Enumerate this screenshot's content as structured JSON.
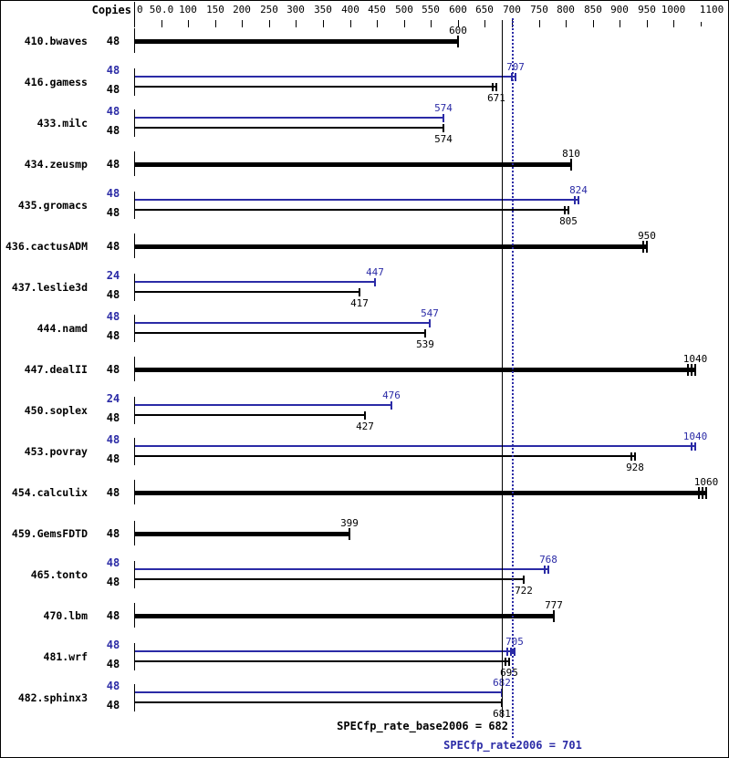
{
  "header": {
    "copies_label": "Copies"
  },
  "chart_data": {
    "type": "bar",
    "orientation": "horizontal",
    "title": "",
    "unit_header": "Copies",
    "x_axis": {
      "min": 0,
      "max": 1100,
      "tick_step": 50,
      "ticks": [
        {
          "v": 0,
          "label": "0"
        },
        {
          "v": 50,
          "label": "50.0"
        },
        {
          "v": 100,
          "label": "100"
        },
        {
          "v": 150,
          "label": "150"
        },
        {
          "v": 200,
          "label": "200"
        },
        {
          "v": 250,
          "label": "250"
        },
        {
          "v": 300,
          "label": "300"
        },
        {
          "v": 350,
          "label": "350"
        },
        {
          "v": 400,
          "label": "400"
        },
        {
          "v": 450,
          "label": "450"
        },
        {
          "v": 500,
          "label": "500"
        },
        {
          "v": 550,
          "label": "550"
        },
        {
          "v": 600,
          "label": "600"
        },
        {
          "v": 650,
          "label": "650"
        },
        {
          "v": 700,
          "label": "700"
        },
        {
          "v": 750,
          "label": "750"
        },
        {
          "v": 800,
          "label": "800"
        },
        {
          "v": 850,
          "label": "850"
        },
        {
          "v": 900,
          "label": "900"
        },
        {
          "v": 950,
          "label": "950"
        },
        {
          "v": 1000,
          "label": "1000"
        },
        {
          "v": 1050,
          "label": "",
          "minor": true
        },
        {
          "v": 1100,
          "label": "1100",
          "label_center": 779
        }
      ]
    },
    "colors": {
      "base": "#000000",
      "peak": "#2b2ba6"
    },
    "benchmarks": [
      {
        "name": "410.bwaves",
        "bars": [
          {
            "copies": "48",
            "value": 600,
            "variant": "base",
            "thick": true,
            "marker": "single"
          }
        ]
      },
      {
        "name": "416.gamess",
        "bars": [
          {
            "copies": "48",
            "value": 707,
            "variant": "peak",
            "thick": false,
            "marker": "double"
          },
          {
            "copies": "48",
            "value": 671,
            "variant": "base",
            "thick": false,
            "marker": "double"
          }
        ]
      },
      {
        "name": "433.milc",
        "bars": [
          {
            "copies": "48",
            "value": 574,
            "variant": "peak",
            "thick": false,
            "marker": "single"
          },
          {
            "copies": "48",
            "value": 574,
            "variant": "base",
            "thick": false,
            "marker": "single"
          }
        ]
      },
      {
        "name": "434.zeusmp",
        "bars": [
          {
            "copies": "48",
            "value": 810,
            "variant": "base",
            "thick": true,
            "marker": "single"
          }
        ]
      },
      {
        "name": "435.gromacs",
        "bars": [
          {
            "copies": "48",
            "value": 824,
            "variant": "peak",
            "thick": false,
            "marker": "double"
          },
          {
            "copies": "48",
            "value": 805,
            "variant": "base",
            "thick": false,
            "marker": "double"
          }
        ]
      },
      {
        "name": "436.cactusADM",
        "bars": [
          {
            "copies": "48",
            "value": 950,
            "variant": "base",
            "thick": true,
            "marker": "double"
          }
        ]
      },
      {
        "name": "437.leslie3d",
        "bars": [
          {
            "copies": "24",
            "value": 447,
            "variant": "peak",
            "thick": false,
            "marker": "single"
          },
          {
            "copies": "48",
            "value": 417,
            "variant": "base",
            "thick": false,
            "marker": "single"
          }
        ]
      },
      {
        "name": "444.namd",
        "bars": [
          {
            "copies": "48",
            "value": 547,
            "variant": "peak",
            "thick": false,
            "marker": "single"
          },
          {
            "copies": "48",
            "value": 539,
            "variant": "base",
            "thick": false,
            "marker": "single"
          }
        ]
      },
      {
        "name": "447.dealII",
        "bars": [
          {
            "copies": "48",
            "value": 1040,
            "variant": "base",
            "thick": true,
            "marker": "triple"
          }
        ]
      },
      {
        "name": "450.soplex",
        "bars": [
          {
            "copies": "24",
            "value": 476,
            "variant": "peak",
            "thick": false,
            "marker": "single"
          },
          {
            "copies": "48",
            "value": 427,
            "variant": "base",
            "thick": false,
            "marker": "single"
          }
        ]
      },
      {
        "name": "453.povray",
        "bars": [
          {
            "copies": "48",
            "value": 1040,
            "variant": "peak",
            "thick": false,
            "marker": "double"
          },
          {
            "copies": "48",
            "value": 928,
            "variant": "base",
            "thick": false,
            "marker": "double"
          }
        ]
      },
      {
        "name": "454.calculix",
        "bars": [
          {
            "copies": "48",
            "value": 1060,
            "variant": "base",
            "thick": true,
            "marker": "triple"
          }
        ]
      },
      {
        "name": "459.GemsFDTD",
        "bars": [
          {
            "copies": "48",
            "value": 399,
            "variant": "base",
            "thick": true,
            "marker": "single"
          }
        ]
      },
      {
        "name": "465.tonto",
        "bars": [
          {
            "copies": "48",
            "value": 768,
            "variant": "peak",
            "thick": false,
            "marker": "double"
          },
          {
            "copies": "48",
            "value": 722,
            "variant": "base",
            "thick": false,
            "marker": "single"
          }
        ]
      },
      {
        "name": "470.lbm",
        "bars": [
          {
            "copies": "48",
            "value": 777,
            "variant": "base",
            "thick": true,
            "marker": "single"
          }
        ]
      },
      {
        "name": "481.wrf",
        "bars": [
          {
            "copies": "48",
            "value": 705,
            "variant": "peak",
            "thick": false,
            "marker": "triple"
          },
          {
            "copies": "48",
            "value": 695,
            "variant": "base",
            "thick": false,
            "marker": "double"
          }
        ]
      },
      {
        "name": "482.sphinx3",
        "bars": [
          {
            "copies": "48",
            "value": 682,
            "variant": "peak",
            "thick": false,
            "marker": "single"
          },
          {
            "copies": "48",
            "value": 681,
            "variant": "base",
            "thick": false,
            "marker": "single"
          }
        ]
      }
    ],
    "means": [
      {
        "id": "base",
        "text": "SPECfp_rate_base2006 = 682",
        "value": 682,
        "line_style": "solid",
        "variant": "base"
      },
      {
        "id": "peak",
        "text": "SPECfp_rate2006 = 701",
        "value": 701,
        "line_style": "dotted",
        "variant": "peak"
      }
    ]
  }
}
